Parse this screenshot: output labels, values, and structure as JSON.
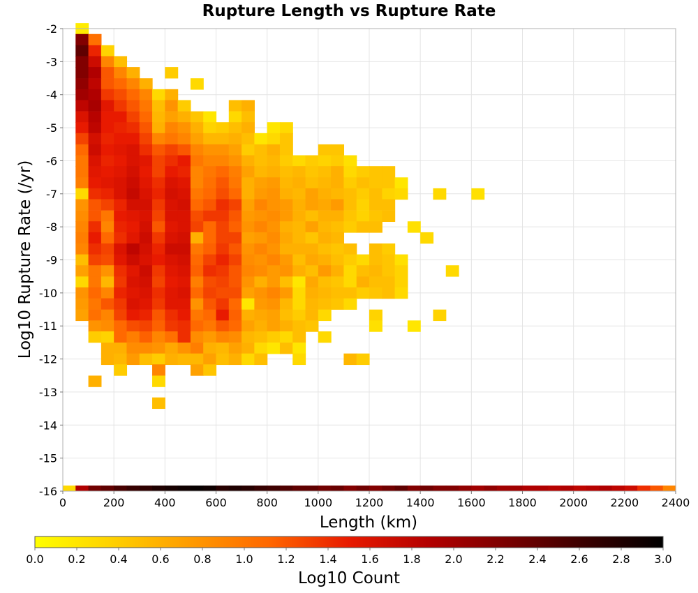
{
  "chart_data": {
    "type": "heatmap",
    "title": "Rupture Length vs Rupture Rate",
    "xlabel": "Length (km)",
    "ylabel": "Log10 Rupture Rate (/yr)",
    "colorbar_label": "Log10 Count",
    "xlim": [
      0,
      2400
    ],
    "ylim": [
      -16,
      -2
    ],
    "x_ticks": [
      0,
      200,
      400,
      600,
      800,
      1000,
      1200,
      1400,
      1600,
      1800,
      2000,
      2200,
      2400
    ],
    "y_ticks": [
      -2,
      -3,
      -4,
      -5,
      -6,
      -7,
      -8,
      -9,
      -10,
      -11,
      -12,
      -13,
      -14,
      -15,
      -16
    ],
    "colorbar_range": [
      0.0,
      3.0
    ],
    "colorbar_ticks": [
      "0.0",
      "0.2",
      "0.4",
      "0.6",
      "0.8",
      "1.0",
      "1.2",
      "1.4",
      "1.6",
      "1.8",
      "2.0",
      "2.2",
      "2.4",
      "2.6",
      "2.8",
      "3.0"
    ],
    "colormap": [
      "#ffff00",
      "#ffd000",
      "#ff9a00",
      "#ff6600",
      "#e81a00",
      "#b40000",
      "#7a0000",
      "#3a0000",
      "#000000"
    ],
    "grid": true,
    "x_bin_width_km": 50,
    "y_bin_height": 0.333,
    "rows": [
      {
        "y": -2.0,
        "x_start": 50,
        "values": [
          0.15
        ]
      },
      {
        "y": -2.33,
        "x_start": 50,
        "values": [
          2.2,
          1.05
        ]
      },
      {
        "y": -2.67,
        "x_start": 50,
        "values": [
          2.4,
          1.45,
          0.35
        ]
      },
      {
        "y": -3.0,
        "x_start": 50,
        "values": [
          2.2,
          1.7,
          0.9,
          0.5
        ]
      },
      {
        "y": -3.33,
        "x_start": 50,
        "values": [
          2.2,
          1.9,
          1.2,
          0.9,
          0.6,
          0,
          0,
          0.4
        ]
      },
      {
        "y": -3.67,
        "x_start": 50,
        "values": [
          2.1,
          1.8,
          1.2,
          1.1,
          0.9,
          0.6,
          0,
          0,
          0,
          0.3
        ]
      },
      {
        "y": -4.0,
        "x_start": 50,
        "values": [
          2.0,
          1.9,
          1.35,
          1.25,
          1.1,
          0.9,
          0.3,
          0.6
        ]
      },
      {
        "y": -4.33,
        "x_start": 50,
        "values": [
          1.8,
          1.95,
          1.55,
          1.35,
          1.2,
          1.0,
          0.5,
          0.8,
          0.4,
          0,
          0,
          0,
          0.5,
          0.6
        ]
      },
      {
        "y": -4.67,
        "x_start": 50,
        "values": [
          1.6,
          1.85,
          1.5,
          1.5,
          1.3,
          1.1,
          0.55,
          0.7,
          0.6,
          0.45,
          0.2,
          0,
          0.3,
          0.5
        ]
      },
      {
        "y": -5.0,
        "x_start": 50,
        "values": [
          1.5,
          1.8,
          1.5,
          1.45,
          1.4,
          1.2,
          0.6,
          0.9,
          0.8,
          0.6,
          0.35,
          0.4,
          0.5,
          0.6,
          0,
          0.2,
          0.3
        ]
      },
      {
        "y": -5.33,
        "x_start": 50,
        "values": [
          1.3,
          1.65,
          1.45,
          1.5,
          1.5,
          1.3,
          0.9,
          1.0,
          0.9,
          0.7,
          0.55,
          0.55,
          0.6,
          0.5,
          0.2,
          0.3,
          0.45
        ]
      },
      {
        "y": -5.67,
        "x_start": 50,
        "values": [
          1.1,
          1.7,
          1.5,
          1.55,
          1.6,
          1.4,
          1.2,
          1.3,
          1.2,
          0.9,
          0.8,
          0.8,
          0.7,
          0.4,
          0.5,
          0.6,
          0.45,
          0,
          0,
          0.45,
          0.45
        ]
      },
      {
        "y": -6.0,
        "x_start": 50,
        "values": [
          1.0,
          1.6,
          1.45,
          1.5,
          1.6,
          1.55,
          1.3,
          1.4,
          1.5,
          1.0,
          0.9,
          0.9,
          0.8,
          0.6,
          0.5,
          0.55,
          0.4,
          0.3,
          0.4,
          0.35,
          0.4,
          0.25
        ]
      },
      {
        "y": -6.33,
        "x_start": 50,
        "values": [
          1.0,
          1.55,
          1.5,
          1.55,
          1.65,
          1.5,
          1.3,
          1.5,
          1.45,
          0.9,
          1.0,
          1.1,
          0.95,
          0.7,
          0.55,
          0.6,
          0.5,
          0.55,
          0.45,
          0.5,
          0.6,
          0.3,
          0.4,
          0.45,
          0.45
        ]
      },
      {
        "y": -6.67,
        "x_start": 50,
        "values": [
          0.95,
          1.5,
          1.55,
          1.6,
          1.7,
          1.55,
          1.4,
          1.6,
          1.55,
          0.9,
          1.05,
          1.2,
          1.0,
          0.6,
          0.7,
          0.75,
          0.55,
          0.6,
          0.5,
          0.55,
          0.6,
          0.4,
          0.5,
          0.45,
          0.45,
          0.2
        ]
      },
      {
        "y": -7.0,
        "x_start": 50,
        "values": [
          0.3,
          1.4,
          1.45,
          1.6,
          1.75,
          1.6,
          1.45,
          1.65,
          1.6,
          1.0,
          1.1,
          1.25,
          1.1,
          0.6,
          0.75,
          0.8,
          0.6,
          0.55,
          0.7,
          0.6,
          0.55,
          0.5,
          0.4,
          0.5,
          0.35,
          0.3,
          0,
          0,
          0.3,
          0,
          0,
          0.25
        ]
      },
      {
        "y": -7.33,
        "x_start": 50,
        "values": [
          0.8,
          1.2,
          1.3,
          1.45,
          1.65,
          1.65,
          1.35,
          1.6,
          1.65,
          1.1,
          1.2,
          1.4,
          1.3,
          0.7,
          0.9,
          0.8,
          0.75,
          0.6,
          0.7,
          0.65,
          0.75,
          0.5,
          0.35,
          0.5,
          0.5
        ]
      },
      {
        "y": -7.67,
        "x_start": 50,
        "values": [
          0.85,
          1.2,
          1.0,
          1.5,
          1.55,
          1.6,
          1.3,
          1.6,
          1.6,
          1.25,
          1.35,
          1.35,
          1.2,
          0.75,
          0.8,
          0.85,
          0.75,
          0.6,
          0.5,
          0.6,
          0.6,
          0.45,
          0.35,
          0.45,
          0.5
        ]
      },
      {
        "y": -8.0,
        "x_start": 50,
        "values": [
          0.9,
          1.4,
          0.9,
          1.45,
          1.5,
          1.65,
          1.2,
          1.55,
          1.6,
          1.3,
          1.1,
          1.3,
          1.15,
          0.8,
          0.9,
          0.8,
          0.6,
          0.55,
          0.7,
          0.55,
          0.5,
          0.4,
          0.5,
          0.5,
          0,
          0,
          0.25
        ]
      },
      {
        "y": -8.33,
        "x_start": 50,
        "values": [
          0.95,
          1.5,
          1.1,
          1.4,
          1.55,
          1.7,
          1.35,
          1.6,
          1.65,
          0.6,
          1.1,
          1.3,
          1.3,
          0.7,
          0.75,
          0.85,
          0.65,
          0.55,
          0.45,
          0.6,
          0.55,
          0,
          0,
          0,
          0,
          0,
          0,
          0.3
        ]
      },
      {
        "y": -8.67,
        "x_start": 50,
        "values": [
          0.9,
          1.4,
          1.3,
          1.6,
          1.8,
          1.65,
          1.45,
          1.7,
          1.7,
          1.0,
          1.15,
          1.35,
          1.2,
          0.8,
          0.9,
          0.8,
          0.6,
          0.6,
          0.6,
          0.5,
          0.45,
          0.5,
          0,
          0.5,
          0.4
        ]
      },
      {
        "y": -9.0,
        "x_start": 50,
        "values": [
          0.5,
          1.3,
          1.25,
          1.55,
          1.7,
          1.6,
          1.5,
          1.6,
          1.65,
          1.1,
          1.3,
          1.45,
          1.3,
          0.85,
          0.8,
          0.9,
          0.75,
          0.5,
          0.65,
          0.6,
          0.5,
          0.4,
          0.3,
          0.5,
          0.45,
          0.25
        ]
      },
      {
        "y": -9.33,
        "x_start": 50,
        "values": [
          0.7,
          1.0,
          0.8,
          1.4,
          1.55,
          1.7,
          1.35,
          1.55,
          1.6,
          1.15,
          1.4,
          1.35,
          1.2,
          0.9,
          0.85,
          0.75,
          0.8,
          0.6,
          0.5,
          0.75,
          0.6,
          0.3,
          0.5,
          0.55,
          0.45,
          0.35,
          0,
          0,
          0,
          0.3
        ]
      },
      {
        "y": -9.67,
        "x_start": 50,
        "values": [
          0.3,
          1.0,
          0.55,
          1.35,
          1.6,
          1.65,
          1.3,
          1.5,
          1.55,
          0.95,
          1.25,
          1.3,
          1.2,
          0.8,
          0.6,
          0.75,
          0.5,
          0.2,
          0.65,
          0.5,
          0.45,
          0.3,
          0.6,
          0.5,
          0.5,
          0.35
        ]
      },
      {
        "y": -10.0,
        "x_start": 50,
        "values": [
          0.8,
          1.1,
          0.9,
          1.45,
          1.55,
          1.6,
          1.4,
          1.55,
          1.6,
          1.1,
          1.3,
          1.25,
          1.25,
          0.7,
          0.8,
          0.9,
          0.75,
          0.3,
          0.6,
          0.55,
          0.5,
          0.5,
          0.4,
          0.45,
          0.5,
          0.3
        ]
      },
      {
        "y": -10.33,
        "x_start": 50,
        "values": [
          0.75,
          1.0,
          1.2,
          1.35,
          1.6,
          1.55,
          1.35,
          1.55,
          1.55,
          0.8,
          1.2,
          1.35,
          1.1,
          0.2,
          0.75,
          0.8,
          0.55,
          0.3,
          0.55,
          0.5,
          0.45,
          0.3,
          0,
          0,
          0,
          0,
          0,
          0,
          0,
          0,
          0,
          0
        ]
      },
      {
        "y": -10.67,
        "x_start": 50,
        "values": [
          0.7,
          1.05,
          0.9,
          1.3,
          1.5,
          1.45,
          1.2,
          1.4,
          1.5,
          1.0,
          1.1,
          1.5,
          1.15,
          0.6,
          0.65,
          0.7,
          0.5,
          0.4,
          0.55,
          0.3,
          0,
          0,
          0,
          0.35,
          0,
          0,
          0,
          0,
          0.35
        ]
      },
      {
        "y": -11.0,
        "x_start": 100,
        "values": [
          0.8,
          0.85,
          1.1,
          1.25,
          1.3,
          1.15,
          1.35,
          1.4,
          1.1,
          1.0,
          1.2,
          1.1,
          0.7,
          0.6,
          0.7,
          0.6,
          0.5,
          0.45,
          0,
          0,
          0,
          0,
          0.25,
          0,
          0,
          0.2
        ]
      },
      {
        "y": -11.33,
        "x_start": 100,
        "values": [
          0.4,
          0.35,
          1.1,
          0.95,
          1.15,
          0.9,
          1.05,
          1.4,
          0.85,
          0.75,
          0.9,
          0.85,
          0.55,
          0.5,
          0.4,
          0.3,
          0.5,
          0,
          0.3
        ]
      },
      {
        "y": -11.67,
        "x_start": 100,
        "values": [
          0,
          0.6,
          0.6,
          0.85,
          0.85,
          0.8,
          0.65,
          0.8,
          0.95,
          0.6,
          0.55,
          0.7,
          0.6,
          0.3,
          0.2,
          0.5,
          0.2
        ]
      },
      {
        "y": -12.0,
        "x_start": 150,
        "values": [
          0.6,
          0.55,
          0.75,
          0.5,
          0.4,
          0.6,
          0.55,
          0.55,
          0.7,
          0.5,
          0.6,
          0.3,
          0.5,
          0,
          0,
          0.3,
          0,
          0,
          0,
          0.55,
          0.4
        ]
      },
      {
        "y": -12.33,
        "x_start": 200,
        "values": [
          0.4,
          0,
          0,
          0.9,
          0,
          0,
          0.7,
          0.45
        ]
      },
      {
        "y": -12.67,
        "x_start": 100,
        "values": [
          0.6,
          0,
          0,
          0,
          0,
          0.3
        ]
      },
      {
        "y": -13.33,
        "x_start": 350,
        "values": [
          0.5
        ]
      }
    ],
    "bottom_row": {
      "y": -16,
      "x_start": 0,
      "values": [
        0.3,
        1.9,
        2.3,
        2.4,
        2.55,
        2.65,
        2.7,
        2.8,
        2.85,
        2.9,
        2.95,
        2.9,
        2.75,
        2.8,
        2.75,
        2.65,
        2.6,
        2.5,
        2.4,
        2.4,
        2.3,
        2.35,
        2.2,
        2.3,
        2.2,
        2.3,
        2.4,
        2.2,
        2.3,
        2.2,
        2.2,
        2.1,
        2.0,
        2.1,
        2.0,
        2.0,
        1.9,
        1.9,
        1.85,
        1.9,
        1.8,
        1.85,
        1.9,
        1.8,
        1.7,
        1.4,
        1.2,
        0.9
      ]
    }
  }
}
